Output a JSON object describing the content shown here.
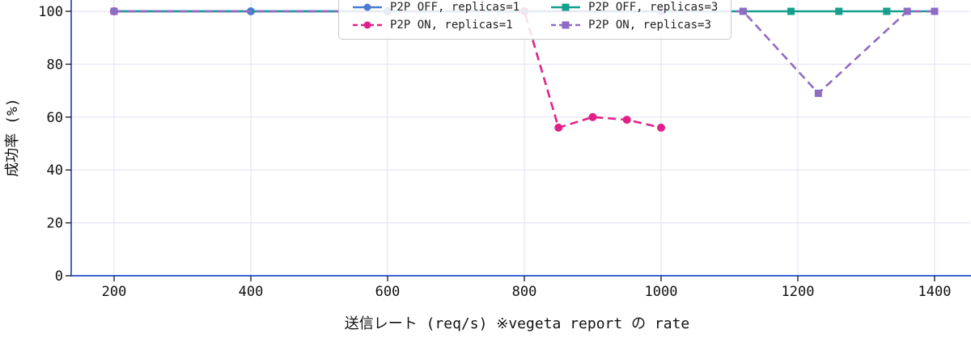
{
  "chart_data": {
    "type": "line",
    "title": "",
    "xlabel": "送信レート (req/s) ※vegeta report の rate",
    "ylabel": "成功率 (%)",
    "x_ticks": [
      200,
      400,
      600,
      800,
      1000,
      1200,
      1400
    ],
    "y_ticks": [
      0,
      20,
      40,
      60,
      80,
      100
    ],
    "xlim": [
      137,
      1452
    ],
    "ylim": [
      0,
      104
    ],
    "grid": true,
    "legend_position": "top-center",
    "axis_color": "#3e63d2",
    "grid_color": "#e5e4f4",
    "tick_color": "#222222",
    "series": [
      {
        "name": "P2P OFF, replicas=1",
        "color": "#4a7bd4",
        "line": "solid",
        "marker": "circle",
        "x": [
          200,
          400,
          600,
          800,
          1000
        ],
        "y": [
          100,
          100,
          100,
          100,
          100
        ]
      },
      {
        "name": "P2P ON, replicas=1",
        "color": "#e0218a",
        "line": "dashed",
        "marker": "circle",
        "x": [
          200,
          800,
          850,
          900,
          950,
          1000
        ],
        "y": [
          100,
          100,
          56,
          60,
          59,
          56
        ]
      },
      {
        "name": "P2P OFF, replicas=3",
        "color": "#169f8e",
        "line": "solid",
        "marker": "square",
        "x": [
          200,
          1000,
          1120,
          1190,
          1260,
          1330,
          1400
        ],
        "y": [
          100,
          100,
          100,
          100,
          100,
          100,
          100
        ]
      },
      {
        "name": "P2P ON, replicas=3",
        "color": "#8e6cc3",
        "line": "dashed",
        "marker": "square",
        "x": [
          200,
          1000,
          1120,
          1230,
          1360,
          1400
        ],
        "y": [
          100,
          100,
          100,
          69,
          100,
          100
        ]
      }
    ]
  }
}
